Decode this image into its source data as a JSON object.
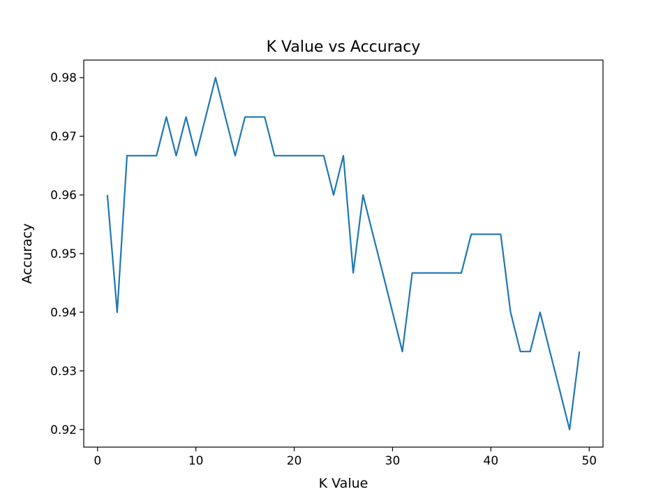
{
  "chart_data": {
    "type": "line",
    "title": "K Value vs Accuracy",
    "xlabel": "K Value",
    "ylabel": "Accuracy",
    "xlim": [
      -1.4,
      51.4
    ],
    "ylim": [
      0.917,
      0.983
    ],
    "xticks": [
      0,
      10,
      20,
      30,
      40,
      50
    ],
    "xtick_labels": [
      "0",
      "10",
      "20",
      "30",
      "40",
      "50"
    ],
    "yticks": [
      0.92,
      0.93,
      0.94,
      0.95,
      0.96,
      0.97,
      0.98
    ],
    "ytick_labels": [
      "0.92",
      "0.93",
      "0.94",
      "0.95",
      "0.96",
      "0.97",
      "0.98"
    ],
    "grid": false,
    "series": [
      {
        "name": "accuracy",
        "color": "#1f77b4",
        "x": [
          1,
          2,
          3,
          4,
          5,
          6,
          7,
          8,
          9,
          10,
          11,
          12,
          13,
          14,
          15,
          16,
          17,
          18,
          19,
          20,
          21,
          22,
          23,
          24,
          25,
          26,
          27,
          28,
          29,
          30,
          31,
          32,
          33,
          34,
          35,
          36,
          37,
          38,
          39,
          40,
          41,
          42,
          43,
          44,
          45,
          46,
          47,
          48,
          49
        ],
        "values": [
          0.96,
          0.94,
          0.9667,
          0.9667,
          0.9667,
          0.9667,
          0.9733,
          0.9667,
          0.9733,
          0.9667,
          0.9733,
          0.98,
          0.9733,
          0.9667,
          0.9733,
          0.9733,
          0.9733,
          0.9667,
          0.9667,
          0.9667,
          0.9667,
          0.9667,
          0.9667,
          0.96,
          0.9667,
          0.9467,
          0.96,
          0.9533,
          0.9467,
          0.94,
          0.9333,
          0.9467,
          0.9467,
          0.9467,
          0.9467,
          0.9467,
          0.9467,
          0.9533,
          0.9533,
          0.9533,
          0.9533,
          0.94,
          0.9333,
          0.9333,
          0.94,
          0.9333,
          0.9267,
          0.92,
          0.9333
        ]
      }
    ]
  }
}
